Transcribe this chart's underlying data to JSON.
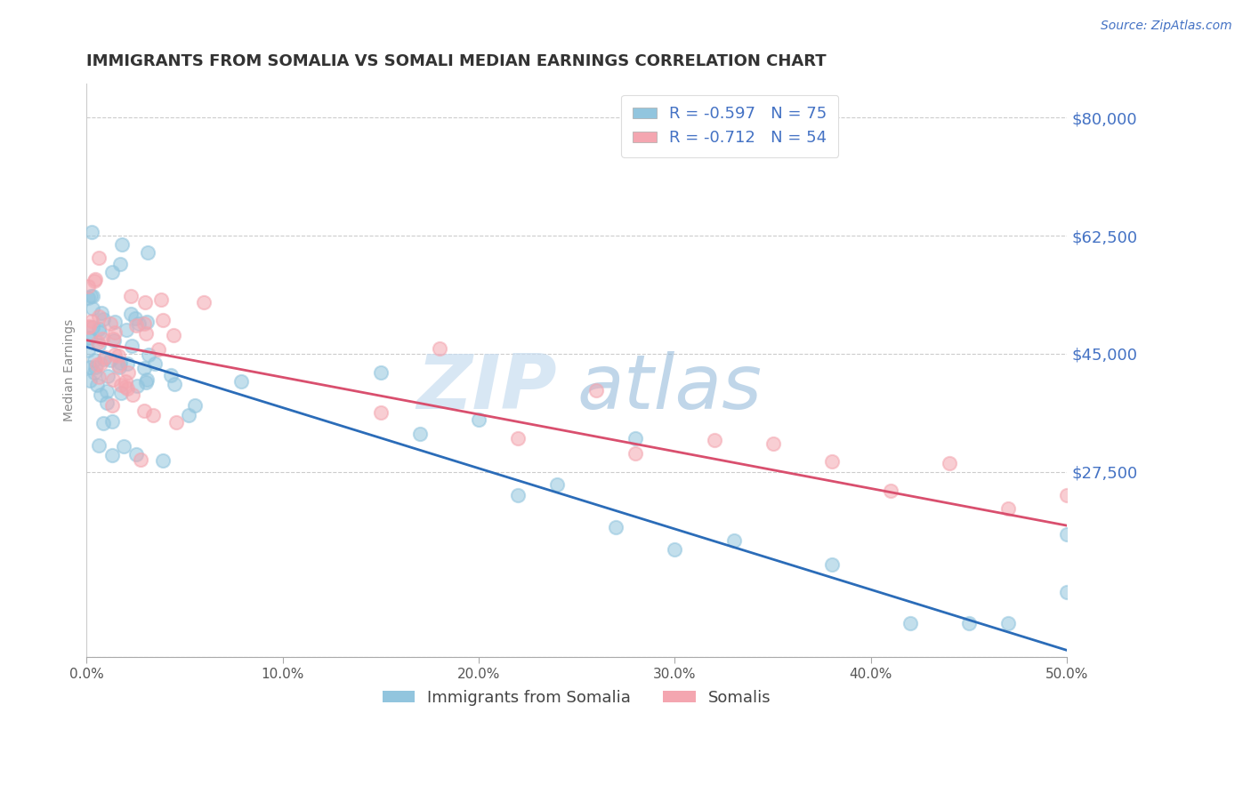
{
  "title": "IMMIGRANTS FROM SOMALIA VS SOMALI MEDIAN EARNINGS CORRELATION CHART",
  "source": "Source: ZipAtlas.com",
  "ylabel": "Median Earnings",
  "xlim": [
    0.0,
    0.5
  ],
  "ylim": [
    0,
    85000
  ],
  "yticks": [
    0,
    27500,
    45000,
    62500,
    80000
  ],
  "ytick_labels": [
    "",
    "$27,500",
    "$45,000",
    "$62,500",
    "$80,000"
  ],
  "xticks": [
    0.0,
    0.1,
    0.2,
    0.3,
    0.4,
    0.5
  ],
  "xtick_labels": [
    "0.0%",
    "10.0%",
    "20.0%",
    "30.0%",
    "40.0%",
    "50.0%"
  ],
  "series1_label": "Immigrants from Somalia",
  "series2_label": "Somalis",
  "series1_color": "#92c5de",
  "series2_color": "#f4a6b0",
  "series1_line_color": "#2b6cb8",
  "series2_line_color": "#d94f6e",
  "series1_R": -0.597,
  "series1_N": 75,
  "series2_R": -0.712,
  "series2_N": 54,
  "watermark_zip": "ZIP",
  "watermark_atlas": "atlas",
  "background_color": "#ffffff",
  "grid_color": "#cccccc",
  "title_color": "#333333",
  "axis_label_color": "#888888",
  "ytick_label_color": "#4472c4",
  "xtick_label_color": "#555555",
  "legend_text_color": "#4472c4",
  "series1_line_intercept": 46000,
  "series1_line_slope": -90000,
  "series2_line_intercept": 47000,
  "series2_line_slope": -55000
}
